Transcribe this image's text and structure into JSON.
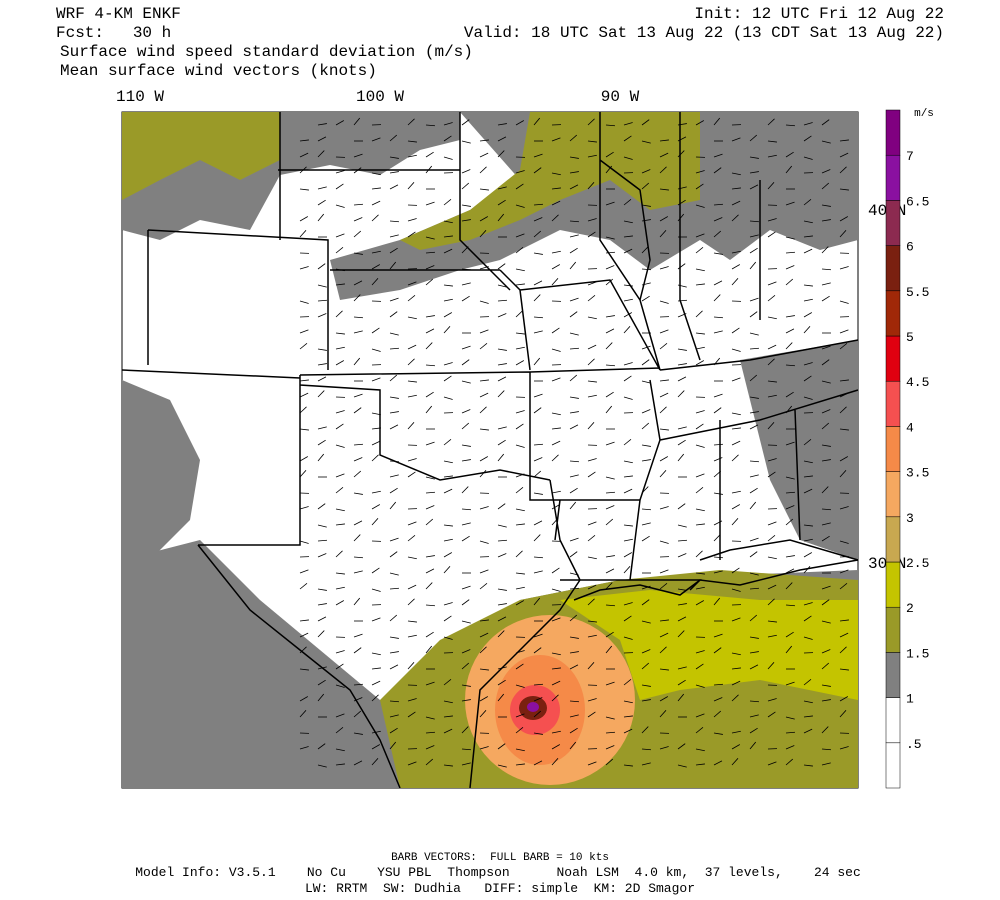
{
  "header": {
    "model": "WRF 4-KM ENKF",
    "forecast": "Fcst:   30 h",
    "init": "Init: 12 UTC Fri 12 Aug 22",
    "valid": "Valid: 18 UTC Sat 13 Aug 22 (13 CDT Sat 13 Aug 22)",
    "field": "Surface wind speed standard deviation (m/s)",
    "vectors": "Mean surface wind vectors (knots)"
  },
  "map": {
    "longitudes": [
      "110 W",
      "100 W",
      "90 W"
    ],
    "latitudes": [
      "40 N",
      "30 N"
    ]
  },
  "colorbar": {
    "unit": "m/s",
    "labels": [
      ".5",
      "1",
      "1.5",
      "2",
      "2.5",
      "3",
      "3.5",
      "4",
      "4.5",
      "5",
      "5.5",
      "6",
      "6.5",
      "7"
    ],
    "colors": [
      "#ffffff",
      "#ffffff",
      "#808080",
      "#9a9a28",
      "#c4c400",
      "#c8a850",
      "#f5a860",
      "#f58a48",
      "#f55050",
      "#e00010",
      "#a02808",
      "#7a2010",
      "#8c2a50",
      "#8a10a0",
      "#800080"
    ]
  },
  "footer": {
    "barbs": "BARB VECTORS:  FULL BARB = 10 kts",
    "model_info": "Model Info: V3.5.1    No Cu    YSU PBL  Thompson      Noah LSM  4.0 km,  37 levels,    24 sec",
    "physics": "LW: RRTM  SW: Dudhia   DIFF: simple  KM: 2D Smagor"
  }
}
